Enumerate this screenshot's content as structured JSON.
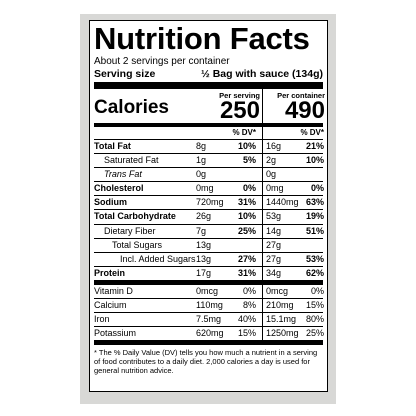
{
  "title": "Nutrition Facts",
  "servings_per_container": "About 2 servings per container",
  "serving_size": {
    "label": "Serving size",
    "value": "½ Bag with sauce (134g)"
  },
  "calories": {
    "label": "Calories",
    "per_serving_label": "Per serving",
    "per_serving_value": "250",
    "per_container_label": "Per container",
    "per_container_value": "490"
  },
  "dv_header": {
    "label1": "% DV*",
    "label2": "% DV*"
  },
  "nutrients": [
    {
      "name": "Total Fat",
      "amt1": "8g",
      "dv1": "10%",
      "amt2": "16g",
      "dv2": "21%"
    },
    {
      "name": "Saturated Fat",
      "amt1": "1g",
      "dv1": "5%",
      "amt2": "2g",
      "dv2": "10%"
    },
    {
      "name": "Trans Fat",
      "amt1": "0g",
      "dv1": "",
      "amt2": "0g",
      "dv2": ""
    },
    {
      "name": "Cholesterol",
      "amt1": "0mg",
      "dv1": "0%",
      "amt2": "0mg",
      "dv2": "0%"
    },
    {
      "name": "Sodium",
      "amt1": "720mg",
      "dv1": "31%",
      "amt2": "1440mg",
      "dv2": "63%"
    },
    {
      "name": "Total Carbohydrate",
      "amt1": "26g",
      "dv1": "10%",
      "amt2": "53g",
      "dv2": "19%"
    },
    {
      "name": "Dietary Fiber",
      "amt1": "7g",
      "dv1": "25%",
      "amt2": "14g",
      "dv2": "51%"
    },
    {
      "name": "Total Sugars",
      "amt1": "13g",
      "dv1": "",
      "amt2": "27g",
      "dv2": ""
    },
    {
      "name": "Incl. Added Sugars",
      "amt1": "13g",
      "dv1": "27%",
      "amt2": "27g",
      "dv2": "53%"
    },
    {
      "name": "Protein",
      "amt1": "17g",
      "dv1": "31%",
      "amt2": "34g",
      "dv2": "62%"
    }
  ],
  "vitamins": [
    {
      "name": "Vitamin D",
      "amt1": "0mcg",
      "dv1": "0%",
      "amt2": "0mcg",
      "dv2": "0%"
    },
    {
      "name": "Calcium",
      "amt1": "110mg",
      "dv1": "8%",
      "amt2": "210mg",
      "dv2": "15%"
    },
    {
      "name": "Iron",
      "amt1": "7.5mg",
      "dv1": "40%",
      "amt2": "15.1mg",
      "dv2": "80%"
    },
    {
      "name": "Potassium",
      "amt1": "620mg",
      "dv1": "15%",
      "amt2": "1250mg",
      "dv2": "25%"
    }
  ],
  "footnote": "* The % Daily Value (DV) tells you how much a nutrient in a serving of food contributes to a daily diet. 2,000 calories a day is used for general nutrition advice."
}
